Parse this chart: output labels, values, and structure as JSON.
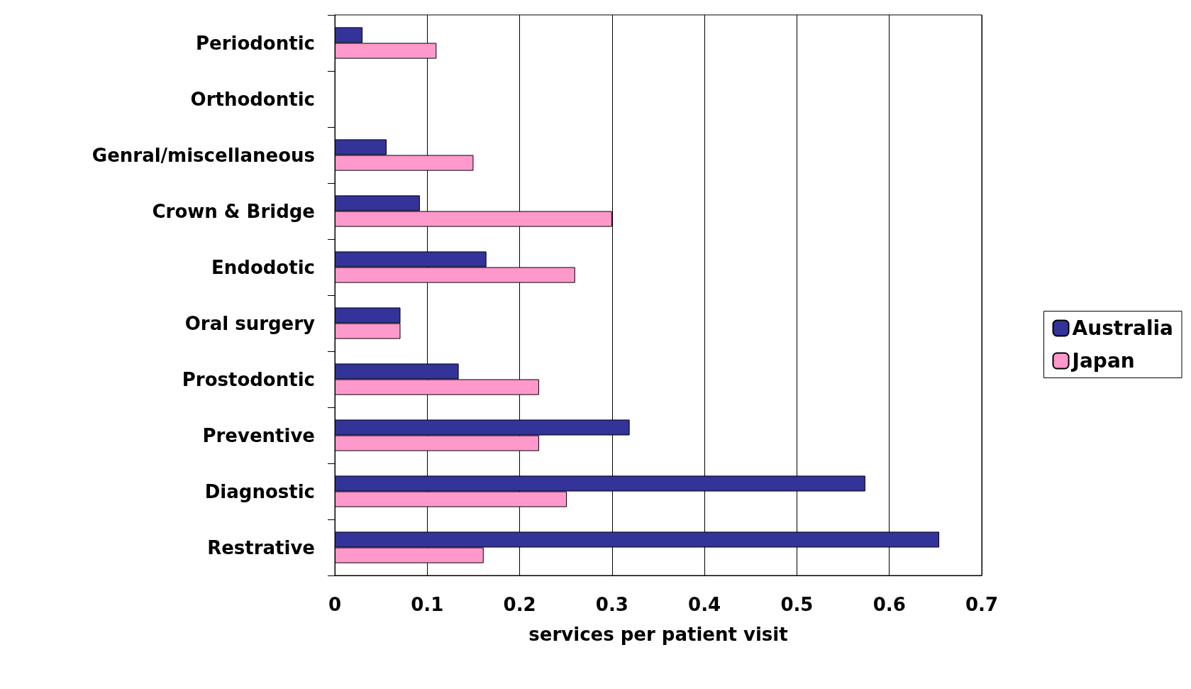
{
  "chart_data": {
    "type": "bar",
    "orientation": "horizontal",
    "xlabel": "services per patient visit",
    "categories": [
      "Periodontic",
      "Orthodontic",
      "Genral/miscellaneous",
      "Crown & Bridge",
      "Endodotic",
      "Oral surgery",
      "Prostodontic",
      "Preventive",
      "Diagnostic",
      "Restrative"
    ],
    "series": [
      {
        "name": "Australia",
        "color": "#333399",
        "values": [
          0.03,
          null,
          0.056,
          0.092,
          0.164,
          0.071,
          0.134,
          0.319,
          0.574,
          0.654
        ]
      },
      {
        "name": "Japan",
        "color": "#ff99cc",
        "values": [
          0.11,
          null,
          0.15,
          0.3,
          0.26,
          0.071,
          0.221,
          0.221,
          0.251,
          0.161
        ]
      }
    ],
    "xlim": [
      0,
      0.7
    ],
    "xticks": [
      0,
      0.1,
      0.2,
      0.3,
      0.4,
      0.5,
      0.6,
      0.7
    ],
    "grid": "x",
    "legend": "right"
  }
}
